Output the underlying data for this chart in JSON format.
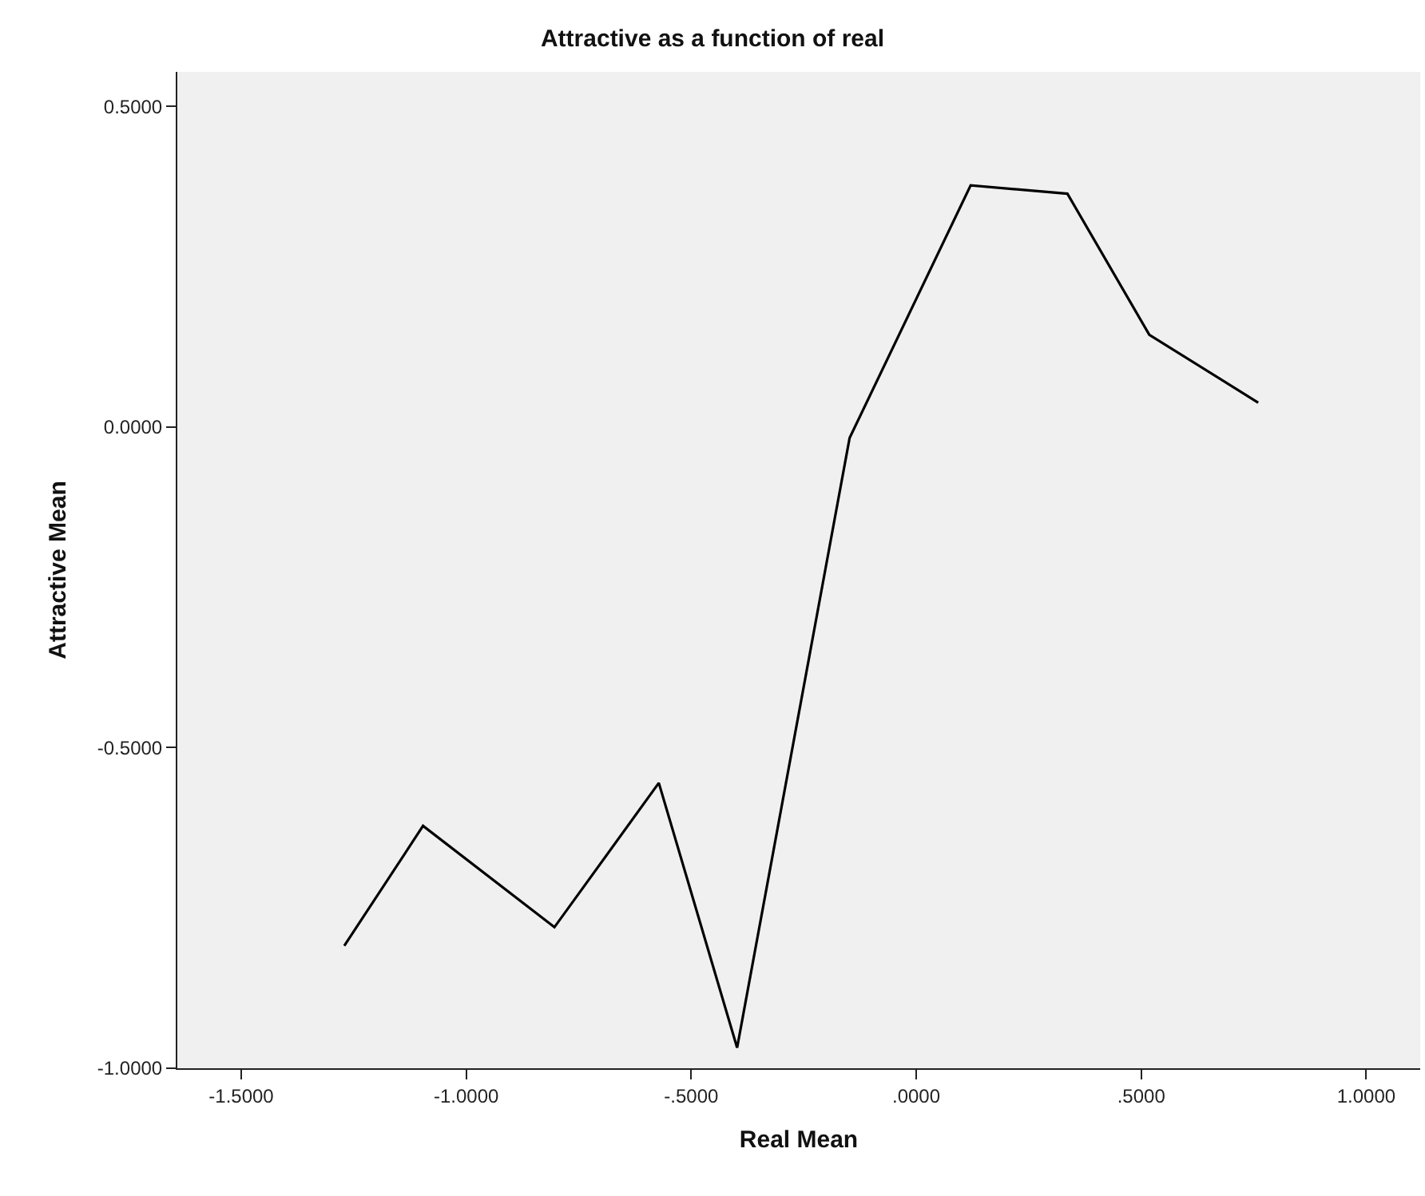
{
  "chart_data": {
    "type": "line",
    "title": "Attractive as a function of real",
    "xlabel": "Real Mean",
    "ylabel": "Attractive Mean",
    "x": [
      -1.271,
      -1.096,
      -0.804,
      -0.572,
      -0.398,
      -0.148,
      0.121,
      0.336,
      0.518,
      0.76
    ],
    "series": [
      {
        "color": "#000000",
        "values": [
          -0.809,
          -0.622,
          -0.78,
          -0.555,
          -0.968,
          -0.017,
          0.377,
          0.364,
          0.144,
          0.038
        ]
      }
    ],
    "xlim": [
      -1.642,
      1.12
    ],
    "ylim": [
      -1.0,
      0.554
    ],
    "xticks": [
      {
        "value": -1.5,
        "label": "-1.5000"
      },
      {
        "value": -1.0,
        "label": "-1.0000"
      },
      {
        "value": -0.5,
        "label": "-.5000"
      },
      {
        "value": 0,
        "label": ".0000"
      },
      {
        "value": 0.5,
        "label": ".5000"
      },
      {
        "value": 1.0,
        "label": "1.0000"
      }
    ],
    "yticks": [
      {
        "value": -1.0,
        "label": "-1.0000"
      },
      {
        "value": -0.5,
        "label": "-0.5000"
      },
      {
        "value": 0,
        "label": "0.0000"
      },
      {
        "value": 0.5,
        "label": "0.5000"
      }
    ],
    "grid": false,
    "marker": "none",
    "line_style": "solid"
  }
}
